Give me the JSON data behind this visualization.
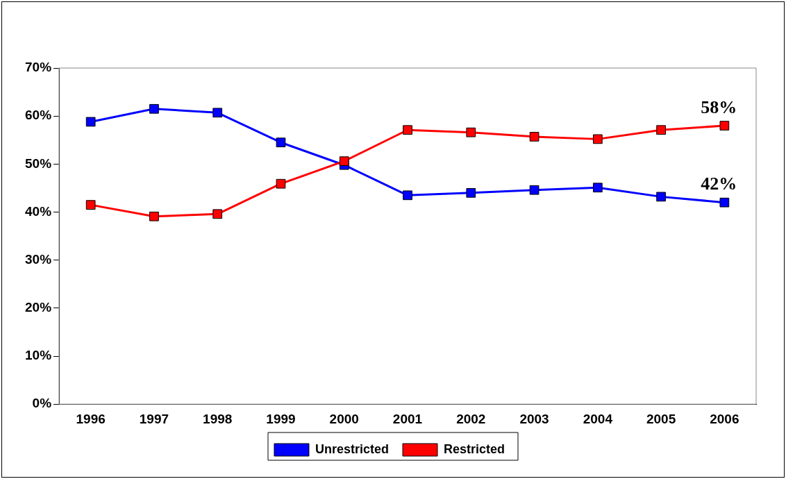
{
  "chart_data": {
    "type": "line",
    "categories": [
      "1996",
      "1997",
      "1998",
      "1999",
      "2000",
      "2001",
      "2002",
      "2003",
      "2004",
      "2005",
      "2006"
    ],
    "series": [
      {
        "name": "Unrestricted",
        "color": "#0000ff",
        "values": [
          58.8,
          61.5,
          60.7,
          54.5,
          49.8,
          43.5,
          44.0,
          44.6,
          45.1,
          43.2,
          42
        ],
        "value_labels": [
          null,
          null,
          null,
          null,
          null,
          null,
          null,
          null,
          null,
          null,
          "42%"
        ]
      },
      {
        "name": "Restricted",
        "color": "#ff0000",
        "values": [
          41.5,
          39.1,
          39.6,
          45.9,
          50.6,
          57.1,
          56.6,
          55.7,
          55.2,
          57.1,
          58
        ],
        "value_labels": [
          null,
          null,
          null,
          null,
          null,
          null,
          null,
          null,
          null,
          null,
          "58%"
        ]
      }
    ],
    "ylim": [
      0,
      70
    ],
    "yticks": [
      {
        "value": 0,
        "label": "0%"
      },
      {
        "value": 10,
        "label": "10%"
      },
      {
        "value": 20,
        "label": "20%"
      },
      {
        "value": 30,
        "label": "30%"
      },
      {
        "value": 40,
        "label": "40%"
      },
      {
        "value": 50,
        "label": "50%"
      },
      {
        "value": 60,
        "label": "60%"
      },
      {
        "value": 70,
        "label": "70%"
      }
    ],
    "grid": false,
    "legend": "bottom",
    "marker": "square",
    "line_style": "solid"
  }
}
